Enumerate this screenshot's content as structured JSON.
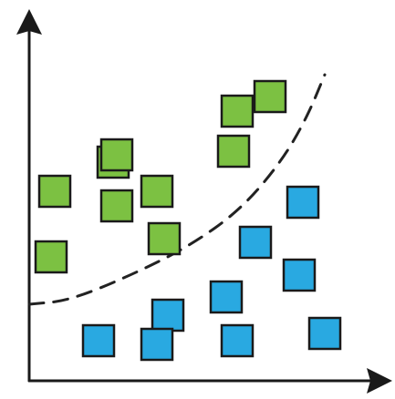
{
  "colors": {
    "class_a": "#7cc142",
    "class_b": "#29a9e1",
    "outline": "#1a1a1a",
    "axis": "#1a1a1a",
    "boundary": "#222222"
  },
  "icons": {
    "x_axis_end": "arrow-right-icon",
    "y_axis_end": "arrow-up-icon"
  },
  "groups": [
    {
      "color_key": "class_a",
      "marker": "square",
      "points": [
        [
          0.23,
          0.6
        ],
        [
          0.07,
          0.52
        ],
        [
          0.24,
          0.48
        ],
        [
          0.35,
          0.52
        ],
        [
          0.37,
          0.39
        ],
        [
          0.57,
          0.74
        ],
        [
          0.66,
          0.78
        ],
        [
          0.56,
          0.63
        ],
        [
          0.06,
          0.34
        ],
        [
          0.24,
          0.62
        ]
      ]
    },
    {
      "color_key": "class_b",
      "marker": "square",
      "points": [
        [
          0.75,
          0.49
        ],
        [
          0.62,
          0.38
        ],
        [
          0.74,
          0.29
        ],
        [
          0.54,
          0.23
        ],
        [
          0.38,
          0.18
        ],
        [
          0.19,
          0.11
        ],
        [
          0.35,
          0.1
        ],
        [
          0.57,
          0.11
        ],
        [
          0.81,
          0.13
        ]
      ]
    }
  ],
  "boundary": {
    "style": "dashed",
    "points": [
      [
        0.0,
        0.21
      ],
      [
        0.11,
        0.22
      ],
      [
        0.28,
        0.29
      ],
      [
        0.44,
        0.37
      ],
      [
        0.58,
        0.47
      ],
      [
        0.69,
        0.6
      ],
      [
        0.76,
        0.72
      ],
      [
        0.81,
        0.84
      ]
    ]
  }
}
